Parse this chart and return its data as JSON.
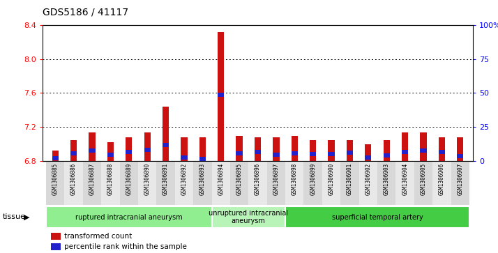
{
  "title": "GDS5186 / 41117",
  "samples": [
    "GSM1306885",
    "GSM1306886",
    "GSM1306887",
    "GSM1306888",
    "GSM1306889",
    "GSM1306890",
    "GSM1306891",
    "GSM1306892",
    "GSM1306893",
    "GSM1306894",
    "GSM1306895",
    "GSM1306896",
    "GSM1306897",
    "GSM1306898",
    "GSM1306899",
    "GSM1306900",
    "GSM1306901",
    "GSM1306902",
    "GSM1306903",
    "GSM1306904",
    "GSM1306905",
    "GSM1306906",
    "GSM1306907"
  ],
  "red_values": [
    6.92,
    7.04,
    7.13,
    7.02,
    7.08,
    7.13,
    7.44,
    7.08,
    7.08,
    8.32,
    7.09,
    7.08,
    7.08,
    7.09,
    7.04,
    7.04,
    7.04,
    6.99,
    7.04,
    7.13,
    7.13,
    7.08,
    7.08
  ],
  "blue_pct": [
    3.5,
    7.0,
    9.0,
    6.0,
    8.0,
    9.5,
    13.0,
    4.0,
    3.0,
    50.0,
    7.0,
    8.0,
    6.0,
    7.0,
    6.5,
    6.5,
    7.5,
    4.0,
    5.5,
    8.0,
    9.0,
    8.0,
    5.0
  ],
  "y_min": 6.8,
  "y_max": 8.4,
  "y_ticks": [
    6.8,
    7.2,
    7.6,
    8.0,
    8.4
  ],
  "y2_ticks": [
    0,
    25,
    50,
    75,
    100
  ],
  "y2_labels": [
    "0",
    "25",
    "50",
    "75",
    "100%"
  ],
  "tissues": [
    {
      "label": "ruptured intracranial aneurysm",
      "start": 0,
      "end": 8,
      "color": "#90EE90"
    },
    {
      "label": "unruptured intracranial\naneurysm",
      "start": 9,
      "end": 12,
      "color": "#b8f4b8"
    },
    {
      "label": "superficial temporal artery",
      "start": 13,
      "end": 22,
      "color": "#44CC44"
    }
  ],
  "bar_color": "#CC1111",
  "blue_color": "#2222CC",
  "bar_bottom": 6.8,
  "bar_width": 0.35,
  "plot_bg": "#FFFFFF",
  "cell_colors": [
    "#D8D8D8",
    "#E8E8E8"
  ],
  "legend_items": [
    "transformed count",
    "percentile rank within the sample"
  ]
}
